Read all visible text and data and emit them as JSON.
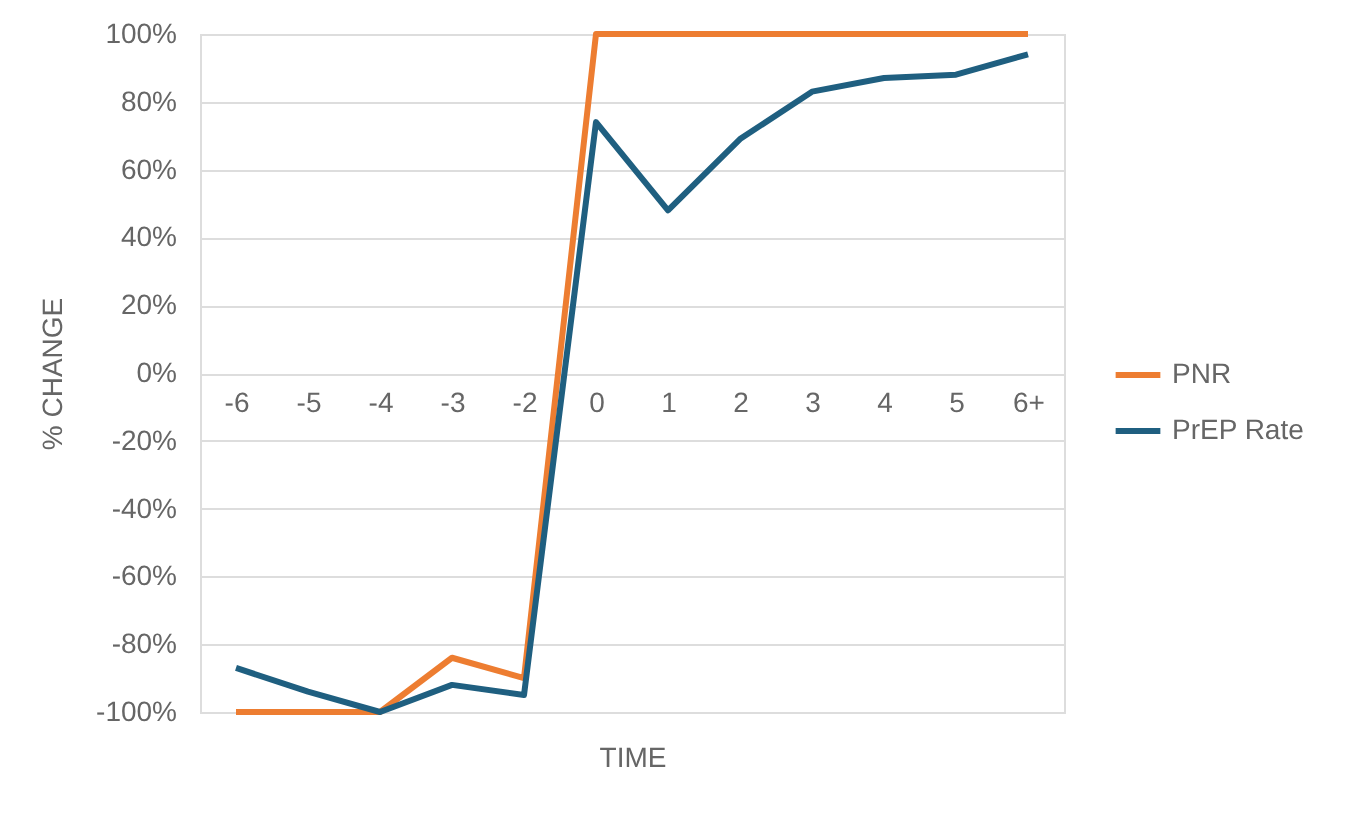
{
  "chart_data": {
    "type": "line",
    "xlabel": "TIME",
    "ylabel": "% CHANGE",
    "categories": [
      "-6",
      "-5",
      "-4",
      "-3",
      "-2",
      "0",
      "1",
      "2",
      "3",
      "4",
      "5",
      "6+"
    ],
    "series": [
      {
        "name": "PNR",
        "color": "#ed7d31",
        "values": [
          -100,
          -100,
          -100,
          -84,
          -90,
          100,
          100,
          100,
          100,
          100,
          100,
          100
        ]
      },
      {
        "name": "PrEP Rate",
        "color": "#1f5f80",
        "values": [
          -87,
          -94,
          -100,
          -92,
          -95,
          74,
          48,
          69,
          83,
          87,
          88,
          94
        ]
      }
    ],
    "ylim": [
      -100,
      100
    ],
    "yticks": [
      {
        "value": -100,
        "label": "-100%"
      },
      {
        "value": -80,
        "label": "-80%"
      },
      {
        "value": -60,
        "label": "-60%"
      },
      {
        "value": -40,
        "label": "-40%"
      },
      {
        "value": -20,
        "label": "-20%"
      },
      {
        "value": 0,
        "label": "0%"
      },
      {
        "value": 20,
        "label": "20%"
      },
      {
        "value": 40,
        "label": "40%"
      },
      {
        "value": 60,
        "label": "60%"
      },
      {
        "value": 80,
        "label": "80%"
      },
      {
        "value": 100,
        "label": "100%"
      }
    ],
    "grid": "y",
    "legend": "right",
    "marker": "none",
    "line_style": "solid"
  }
}
